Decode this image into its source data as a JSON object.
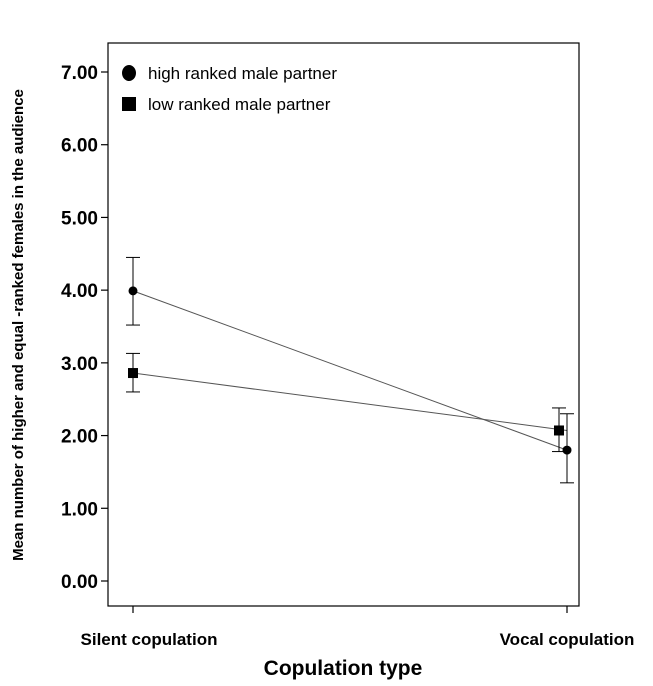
{
  "chart_data": {
    "type": "line",
    "categories": [
      "Silent copulation",
      "Vocal copulation"
    ],
    "xlabel": "Copulation type",
    "ylabel": "Mean number of higher and equal -ranked females in the audience",
    "ylim": [
      0,
      7.5
    ],
    "yticks": [
      "0.00",
      "1.00",
      "2.00",
      "3.00",
      "4.00",
      "5.00",
      "6.00",
      "7.00"
    ],
    "grid": false,
    "legend_position": "top-left",
    "series": [
      {
        "name": "high ranked male partner",
        "marker": "circle",
        "color": "#000000",
        "values": [
          3.99,
          1.8
        ],
        "error_low": [
          3.52,
          1.35
        ],
        "error_high": [
          4.45,
          2.3
        ]
      },
      {
        "name": "low ranked male partner",
        "marker": "square",
        "color": "#000000",
        "values": [
          2.86,
          2.07
        ],
        "error_low": [
          2.6,
          1.78
        ],
        "error_high": [
          3.13,
          2.38
        ]
      }
    ]
  }
}
